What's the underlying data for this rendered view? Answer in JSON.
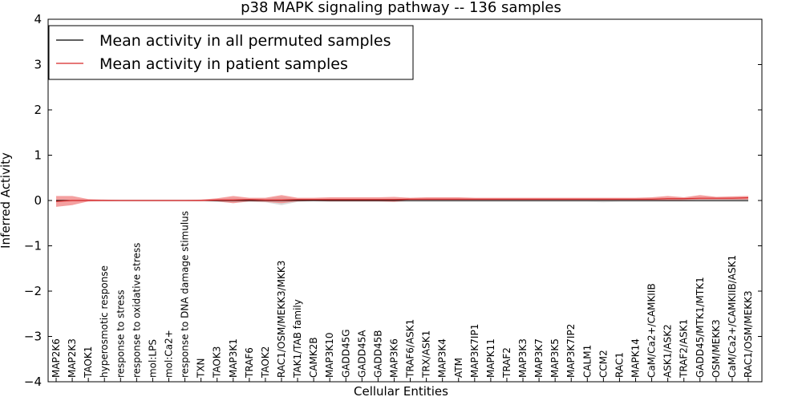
{
  "chart_data": {
    "type": "line",
    "title": "p38 MAPK signaling pathway -- 136 samples",
    "xlabel": "Cellular Entities",
    "ylabel": "Inferred Activity",
    "ylim": [
      -4,
      4
    ],
    "yticks": [
      -4,
      -3,
      -2,
      -1,
      0,
      1,
      2,
      3,
      4
    ],
    "ytick_labels": [
      "−4",
      "−3",
      "−2",
      "−1",
      "0",
      "1",
      "2",
      "3",
      "4"
    ],
    "grid": false,
    "legend_position": "top-left",
    "categories": [
      "MAP2K6",
      "MAP2K3",
      "TAOK1",
      "hyperosmotic response",
      "response to stress",
      "response to oxidative stress",
      "mol:LPS",
      "mol:Ca2+",
      "response to DNA damage stimulus",
      "TXN",
      "TAOK3",
      "MAP3K1",
      "TRAF6",
      "TAOK2",
      "RAC1/OSM/MEKK3/MKK3",
      "TAK1/TAB family",
      "CAMK2B",
      "MAP3K10",
      "GADD45G",
      "GADD45A",
      "GADD45B",
      "MAP3K6",
      "TRAF6/ASK1",
      "TRX/ASK1",
      "MAP3K4",
      "ATM",
      "MAP3K7IP1",
      "MAPK11",
      "TRAF2",
      "MAP3K3",
      "MAP3K7",
      "MAP3K5",
      "MAP3K7IP2",
      "CALM1",
      "CCM2",
      "RAC1",
      "MAPK14",
      "CaM/Ca2+/CAMKIIB",
      "ASK1/ASK2",
      "TRAF2/ASK1",
      "GADD45/MTK1/MTK1",
      "OSM/MEKK3",
      "CaM/Ca2+/CAMKIIB/ASK1",
      "RAC1/OSM/MEKK3"
    ],
    "series": [
      {
        "name": "Mean activity in all permuted samples",
        "color": "#000000",
        "values": [
          0,
          0,
          0,
          0,
          0,
          0,
          0,
          0,
          0,
          0,
          0,
          0,
          0,
          0,
          0,
          0,
          0,
          0,
          0,
          0,
          0,
          0,
          0,
          0,
          0,
          0,
          0,
          0,
          0,
          0,
          0,
          0,
          0,
          0,
          0,
          0,
          0,
          0,
          0,
          0,
          0,
          0,
          0,
          0
        ],
        "band_lower": [
          -0.02,
          -0.02,
          -0.02,
          -0.02,
          -0.02,
          -0.02,
          -0.02,
          -0.02,
          -0.02,
          -0.02,
          -0.03,
          -0.05,
          -0.03,
          -0.04,
          -0.1,
          -0.03,
          -0.02,
          -0.03,
          -0.03,
          -0.03,
          -0.03,
          -0.03,
          -0.03,
          -0.03,
          -0.03,
          -0.03,
          -0.03,
          -0.03,
          -0.03,
          -0.03,
          -0.03,
          -0.03,
          -0.03,
          -0.03,
          -0.04,
          -0.03,
          -0.03,
          -0.03,
          -0.03,
          -0.03,
          -0.03,
          -0.03,
          -0.03,
          -0.03
        ],
        "band_upper": [
          0.02,
          0.02,
          0.02,
          0.02,
          0.02,
          0.02,
          0.02,
          0.02,
          0.02,
          0.02,
          0.03,
          0.05,
          0.03,
          0.04,
          0.08,
          0.03,
          0.02,
          0.03,
          0.03,
          0.03,
          0.03,
          0.03,
          0.03,
          0.03,
          0.03,
          0.03,
          0.03,
          0.03,
          0.03,
          0.03,
          0.03,
          0.03,
          0.03,
          0.03,
          0.04,
          0.03,
          0.03,
          0.03,
          0.03,
          0.03,
          0.03,
          0.03,
          0.03,
          0.03
        ],
        "band_color": "#cccccc"
      },
      {
        "name": "Mean activity in patient samples",
        "color": "#d62728",
        "values": [
          -0.02,
          0,
          0,
          0,
          0,
          0,
          0,
          0,
          0,
          0,
          0.01,
          0.01,
          0.02,
          0.01,
          0.01,
          0.02,
          0.02,
          0.02,
          0.02,
          0.02,
          0.02,
          0.02,
          0.03,
          0.03,
          0.03,
          0.03,
          0.03,
          0.03,
          0.03,
          0.03,
          0.03,
          0.03,
          0.03,
          0.03,
          0.03,
          0.03,
          0.03,
          0.03,
          0.04,
          0.04,
          0.05,
          0.05,
          0.05,
          0.06
        ],
        "band_lower": [
          -0.14,
          -0.1,
          -0.02,
          -0.01,
          -0.01,
          -0.01,
          -0.01,
          -0.01,
          -0.01,
          -0.01,
          -0.02,
          -0.06,
          -0.02,
          -0.03,
          -0.06,
          -0.02,
          -0.01,
          -0.02,
          -0.02,
          -0.02,
          -0.02,
          -0.03,
          0.0,
          0.0,
          0.0,
          0.0,
          0.0,
          0.0,
          0.0,
          0.0,
          0.0,
          0.0,
          0.0,
          0.0,
          0.0,
          0.0,
          0.0,
          0.0,
          0.0,
          0.01,
          0.02,
          0.02,
          0.02,
          0.02
        ],
        "band_upper": [
          0.1,
          0.1,
          0.03,
          0.02,
          0.01,
          0.01,
          0.01,
          0.01,
          0.01,
          0.02,
          0.05,
          0.1,
          0.06,
          0.06,
          0.12,
          0.06,
          0.06,
          0.07,
          0.07,
          0.07,
          0.07,
          0.08,
          0.06,
          0.07,
          0.07,
          0.07,
          0.06,
          0.06,
          0.06,
          0.06,
          0.06,
          0.06,
          0.06,
          0.06,
          0.06,
          0.06,
          0.06,
          0.07,
          0.1,
          0.07,
          0.12,
          0.08,
          0.09,
          0.1
        ],
        "band_color": "#f08080"
      }
    ]
  }
}
